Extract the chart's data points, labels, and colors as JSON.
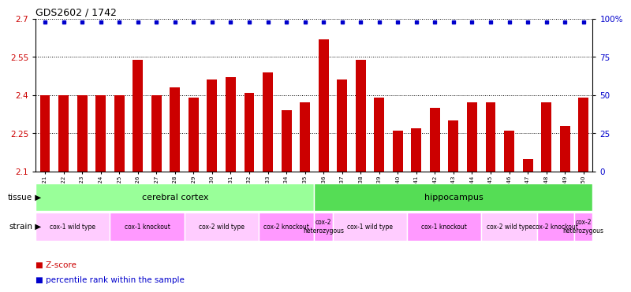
{
  "title": "GDS2602 / 1742",
  "samples": [
    "GSM121421",
    "GSM121422",
    "GSM121423",
    "GSM121424",
    "GSM121425",
    "GSM121426",
    "GSM121427",
    "GSM121428",
    "GSM121429",
    "GSM121430",
    "GSM121431",
    "GSM121432",
    "GSM121433",
    "GSM121434",
    "GSM121435",
    "GSM121436",
    "GSM121437",
    "GSM121438",
    "GSM121439",
    "GSM121440",
    "GSM121441",
    "GSM121442",
    "GSM121443",
    "GSM121444",
    "GSM121445",
    "GSM121446",
    "GSM121447",
    "GSM121448",
    "GSM121449",
    "GSM121450"
  ],
  "zscores": [
    2.4,
    2.4,
    2.4,
    2.4,
    2.4,
    2.54,
    2.4,
    2.43,
    2.39,
    2.46,
    2.47,
    2.41,
    2.49,
    2.34,
    2.37,
    2.62,
    2.46,
    2.54,
    2.39,
    2.26,
    2.27,
    2.35,
    2.3,
    2.37,
    2.37,
    2.26,
    2.15,
    2.37,
    2.28,
    2.39
  ],
  "bar_color": "#cc0000",
  "dot_color": "#0000cc",
  "ylim_left": [
    2.1,
    2.7
  ],
  "ylim_right": [
    0,
    100
  ],
  "yticks_left": [
    2.1,
    2.25,
    2.4,
    2.55,
    2.7
  ],
  "yticks_right": [
    0,
    25,
    50,
    75,
    100
  ],
  "ytick_labels_left": [
    "2.1",
    "2.25",
    "2.4",
    "2.55",
    "2.7"
  ],
  "ytick_labels_right": [
    "0",
    "25",
    "50",
    "75",
    "100%"
  ],
  "grid_lines": [
    2.25,
    2.4,
    2.55
  ],
  "tissue_regions": [
    {
      "label": "cerebral cortex",
      "start": 0,
      "end": 15,
      "color": "#99ff99"
    },
    {
      "label": "hippocampus",
      "start": 15,
      "end": 30,
      "color": "#55dd55"
    }
  ],
  "strain_regions": [
    {
      "label": "cox-1 wild type",
      "start": 0,
      "end": 4,
      "color": "#ffccff"
    },
    {
      "label": "cox-1 knockout",
      "start": 4,
      "end": 8,
      "color": "#ff99ff"
    },
    {
      "label": "cox-2 wild type",
      "start": 8,
      "end": 12,
      "color": "#ffccff"
    },
    {
      "label": "cox-2 knockout",
      "start": 12,
      "end": 15,
      "color": "#ff99ff"
    },
    {
      "label": "cox-2\nheterozygous",
      "start": 15,
      "end": 16,
      "color": "#ff99ff"
    },
    {
      "label": "cox-1 wild type",
      "start": 16,
      "end": 20,
      "color": "#ffccff"
    },
    {
      "label": "cox-1 knockout",
      "start": 20,
      "end": 24,
      "color": "#ff99ff"
    },
    {
      "label": "cox-2 wild type",
      "start": 24,
      "end": 27,
      "color": "#ffccff"
    },
    {
      "label": "cox-2 knockout",
      "start": 27,
      "end": 29,
      "color": "#ff99ff"
    },
    {
      "label": "cox-2\nheterozygous",
      "start": 29,
      "end": 30,
      "color": "#ff99ff"
    }
  ],
  "bg_color": "#ffffff",
  "tick_color_left": "#cc0000",
  "tick_color_right": "#0000cc",
  "legend_z_color": "#cc0000",
  "legend_p_color": "#0000cc"
}
